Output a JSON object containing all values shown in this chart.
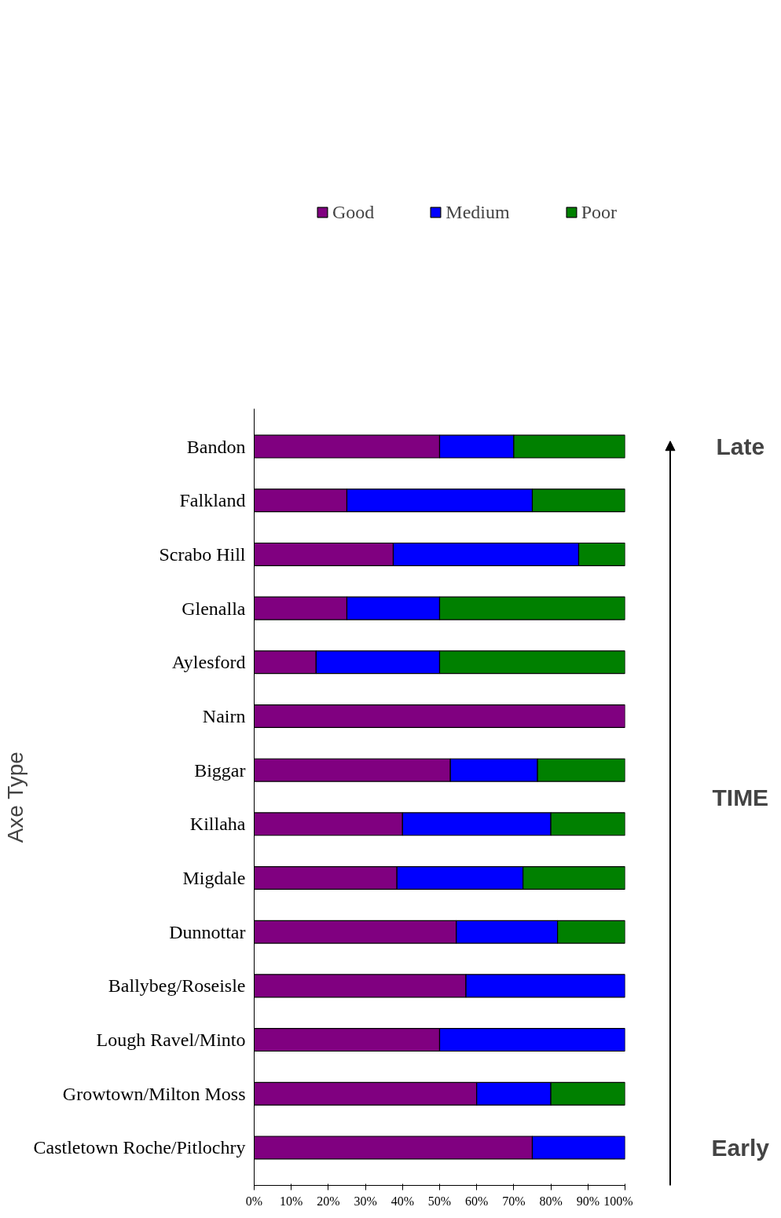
{
  "chart_data": {
    "type": "bar",
    "orientation": "horizontal",
    "stacked": true,
    "ylabel": "Axe Type",
    "categories": [
      "Bandon",
      "Falkland",
      "Scrabo Hill",
      "Glenalla",
      "Aylesford",
      "Nairn",
      "Biggar",
      "Killaha",
      "Migdale",
      "Dunnottar",
      "Ballybeg/Roseisle",
      "Lough Ravel/Minto",
      "Growtown/Milton Moss",
      "Castletown Roche/Pitlochry"
    ],
    "series": [
      {
        "name": "Good",
        "color": "#800080",
        "values": [
          50,
          25,
          37.5,
          25,
          16.7,
          100,
          52.9,
          40,
          38.5,
          54.5,
          57.1,
          50,
          60,
          75
        ]
      },
      {
        "name": "Medium",
        "color": "#0000ff",
        "values": [
          20,
          50,
          50,
          25,
          33.3,
          null,
          23.5,
          40,
          34,
          27.3,
          42.9,
          50,
          20,
          25
        ]
      },
      {
        "name": "Poor",
        "color": "#008000",
        "values": [
          30,
          25,
          12.5,
          50,
          50,
          null,
          23.6,
          20,
          27.5,
          18.2,
          null,
          null,
          20,
          null
        ]
      }
    ],
    "xlim": [
      0,
      100
    ],
    "xticks": [
      {
        "value": 0,
        "label": "0%"
      },
      {
        "value": 10,
        "label": "10%"
      },
      {
        "value": 20,
        "label": "20%"
      },
      {
        "value": 30,
        "label": "30%"
      },
      {
        "value": 40,
        "label": "40%"
      },
      {
        "value": 50,
        "label": "50%"
      },
      {
        "value": 60,
        "label": "60%"
      },
      {
        "value": 70,
        "label": "70%"
      },
      {
        "value": 80,
        "label": "80%"
      },
      {
        "value": 90,
        "label": "90%"
      },
      {
        "value": 100,
        "label": "100%"
      }
    ],
    "legend": "top",
    "grid": false,
    "annotations": [
      "Late",
      "TIME",
      "Early"
    ]
  }
}
